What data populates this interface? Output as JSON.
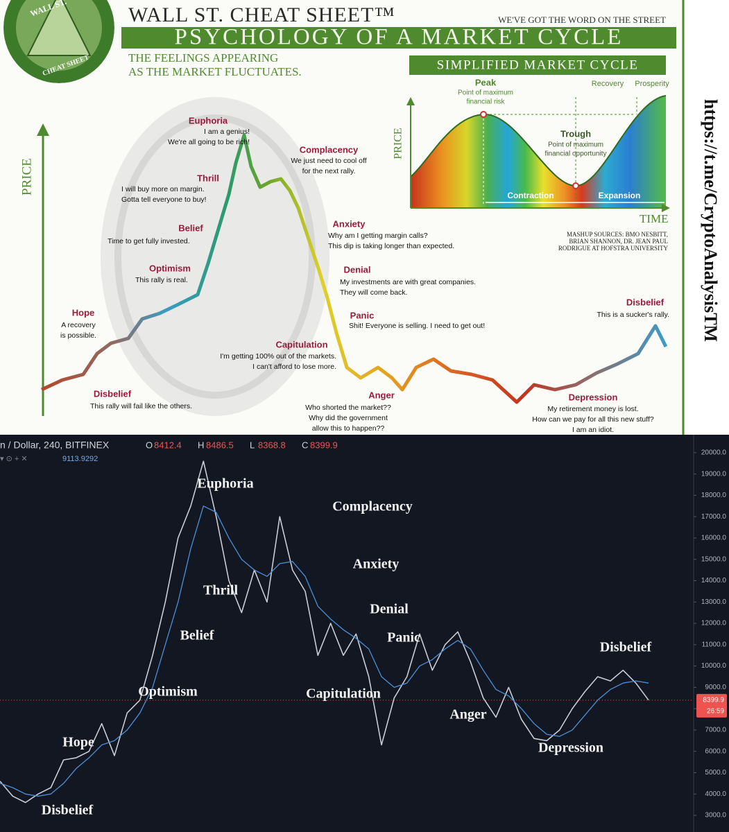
{
  "header": {
    "logo_top": "WALL ST.",
    "logo_bottom": "CHEAT SHEET",
    "title": "WALL ST. CHEAT SHEET™",
    "tagline": "WE'VE GOT THE WORD ON THE STREET",
    "subtitle": "PSYCHOLOGY OF A MARKET CYCLE",
    "description": [
      "THE FEELINGS APPEARING",
      "AS THE MARKET FLUCTUATES."
    ]
  },
  "cycle_axis_label": "PRICE",
  "stages": [
    {
      "label": "Euphoria",
      "quote": [
        "I am a genius!",
        "We're all going to be rich!"
      ]
    },
    {
      "label": "Thrill",
      "quote": [
        "I will buy more on margin.",
        "Gotta tell everyone to buy!"
      ]
    },
    {
      "label": "Belief",
      "quote": [
        "Time to get fully invested."
      ]
    },
    {
      "label": "Optimism",
      "quote": [
        "This rally is real."
      ]
    },
    {
      "label": "Hope",
      "quote": [
        "A recovery",
        "is possible."
      ]
    },
    {
      "label": "Disbelief",
      "quote": [
        "This rally will fail like the others."
      ]
    },
    {
      "label": "Complacency",
      "quote": [
        "We just need to cool off",
        "for the next rally."
      ]
    },
    {
      "label": "Anxiety",
      "quote": [
        "Why am I getting margin calls?",
        "This dip is taking longer than expected."
      ]
    },
    {
      "label": "Denial",
      "quote": [
        "My investments are with great companies.",
        "They will come back."
      ]
    },
    {
      "label": "Panic",
      "quote": [
        "Shit! Everyone is selling. I need to get out!"
      ]
    },
    {
      "label": "Capitulation",
      "quote": [
        "I'm getting 100% out of the markets.",
        "I can't afford to lose more."
      ]
    },
    {
      "label": "Anger",
      "quote": [
        "Who shorted the market??",
        "Why did the government",
        "allow this to happen??"
      ]
    },
    {
      "label": "Depression",
      "quote": [
        "My retirement money is lost.",
        "How can we pay for all this new stuff?",
        "I am an idiot."
      ]
    },
    {
      "label": "Disbelief",
      "quote": [
        "This is a sucker's rally."
      ]
    }
  ],
  "inset": {
    "title": "SIMPLIFIED MARKET CYCLE",
    "y_label": "PRICE",
    "x_label": "TIME",
    "peak": "Peak",
    "peak_note": [
      "Point of maximum",
      "financial risk"
    ],
    "trough": "Trough",
    "trough_note": [
      "Point of maximum",
      "financial opportunity"
    ],
    "recovery": "Recovery",
    "prosperity": "Prosperity",
    "contraction": "Contraction",
    "expansion": "Expansion",
    "sources": [
      "MASHUP SOURCES: BMO NESBITT,",
      "BRIAN SHANNON, DR. JEAN PAUL",
      "RODRIGUE AT HOFSTRA UNIVERSITY"
    ]
  },
  "link": "https://t.me/CryptoAnalysisTM",
  "chart_data": {
    "type": "line",
    "symbol": "n / Dollar, 240, BITFINEX",
    "ohlc": [
      {
        "label": "O",
        "value": 8412.4
      },
      {
        "label": "H",
        "value": 8486.5
      },
      {
        "label": "L",
        "value": 8368.8
      },
      {
        "label": "C",
        "value": 8399.9
      }
    ],
    "indicator_value": 9113.9292,
    "last_price": 8399.9,
    "countdown": "26:59",
    "ylim": [
      2220,
      20840
    ],
    "yticks": [
      {
        "value": 3000,
        "label": "3000.0"
      },
      {
        "value": 4000,
        "label": "4000.0"
      },
      {
        "value": 5000,
        "label": "5000.0"
      },
      {
        "value": 6000,
        "label": "6000.0"
      },
      {
        "value": 7000,
        "label": "7000.0"
      },
      {
        "value": 8000,
        "label": "8000.0"
      },
      {
        "value": 9000,
        "label": "9000.0"
      },
      {
        "value": 10000,
        "label": "10000.0"
      },
      {
        "value": 11000,
        "label": "11000.0"
      },
      {
        "value": 12000,
        "label": "12000.0"
      },
      {
        "value": 13000,
        "label": "13000.0"
      },
      {
        "value": 14000,
        "label": "14000.0"
      },
      {
        "value": 15000,
        "label": "15000.0"
      },
      {
        "value": 16000,
        "label": "16000.0"
      },
      {
        "value": 17000,
        "label": "17000.0"
      },
      {
        "value": 18000,
        "label": "18000.0"
      },
      {
        "value": 19000,
        "label": "19000.0"
      },
      {
        "value": 20000,
        "label": "20000.0"
      }
    ],
    "series": [
      {
        "color": "#c9ccd4",
        "values": [
          4600,
          3900,
          3600,
          4000,
          4300,
          5600,
          5700,
          6000,
          7300,
          5800,
          7800,
          8400,
          10500,
          13000,
          16000,
          17500,
          19600,
          17000,
          14000,
          12500,
          14500,
          13000,
          17000,
          14500,
          13500,
          10500,
          12000,
          10500,
          11500,
          9500,
          6300,
          8500,
          9500,
          11500,
          9800,
          11000,
          11600,
          10200,
          8500,
          7600,
          9000,
          7500,
          6600,
          6500,
          7000,
          8000,
          8800,
          9500,
          9300,
          9800,
          9200,
          8400
        ]
      },
      {
        "color": "#4a90d9",
        "values": [
          4500,
          4300,
          4000,
          3900,
          4000,
          4500,
          5200,
          5700,
          6300,
          6500,
          7000,
          7800,
          9000,
          11000,
          13000,
          15500,
          17500,
          17200,
          16000,
          15000,
          14500,
          14200,
          14800,
          14900,
          14200,
          12800,
          12200,
          11700,
          11300,
          10800,
          9500,
          9000,
          9200,
          10000,
          10300,
          10800,
          11200,
          10800,
          9800,
          8900,
          8600,
          8000,
          7300,
          6800,
          6700,
          7000,
          7700,
          8400,
          8900,
          9200,
          9300,
          9200
        ]
      }
    ],
    "annotations": [
      "Disbelief",
      "Hope",
      "Optimism",
      "Belief",
      "Thrill",
      "Euphoria",
      "Complacency",
      "Anxiety",
      "Denial",
      "Panic",
      "Capitulation",
      "Anger",
      "Depression",
      "Disbelief"
    ]
  }
}
